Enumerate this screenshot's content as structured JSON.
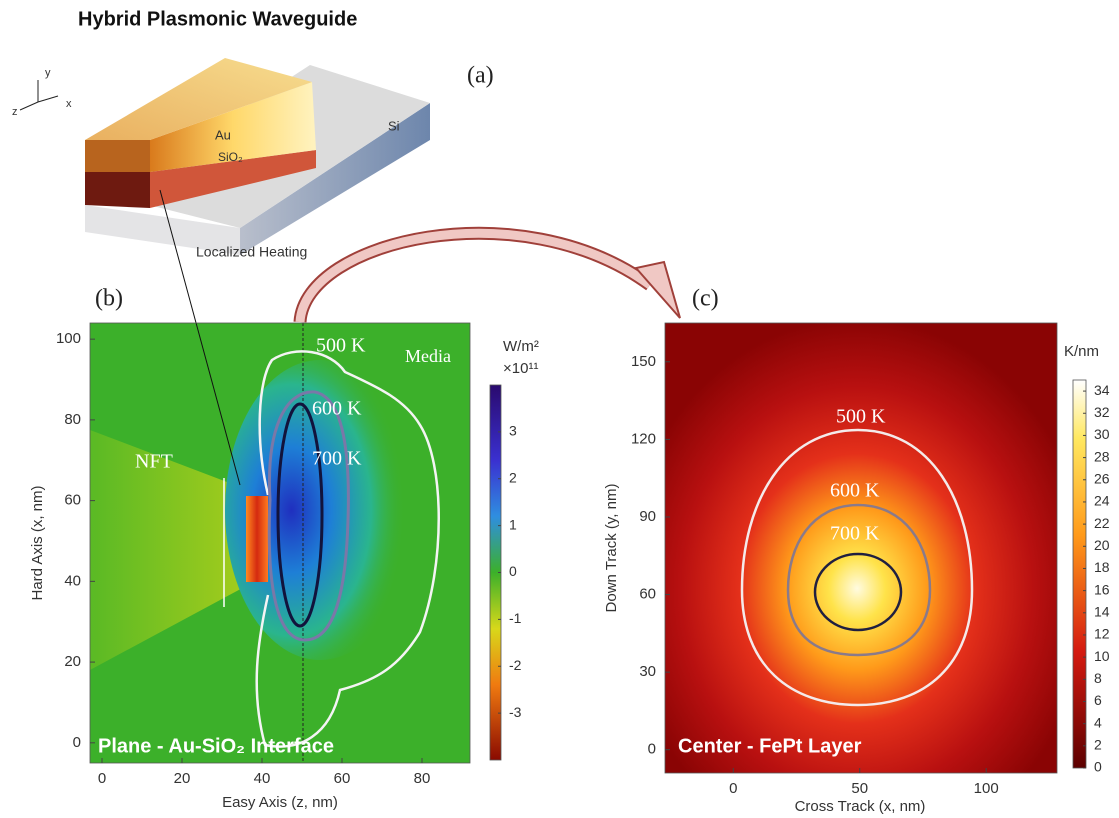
{
  "title": "Hybrid Plasmonic Waveguide",
  "diagram": {
    "label": "(a)",
    "axes": [
      "y",
      "z",
      "x"
    ],
    "layers": [
      "Au",
      "SiO₂",
      "Si"
    ],
    "caption": "Localized Heating"
  },
  "chart_data": [
    {
      "type": "heatmap",
      "panel": "(b)",
      "xlabel": "Easy Axis (z, nm)",
      "ylabel": "Hard Axis (x, nm)",
      "xlim": [
        -3,
        92
      ],
      "xticks": [
        0,
        20,
        40,
        60,
        80
      ],
      "ylim": [
        -5,
        104
      ],
      "yticks": [
        0,
        20,
        40,
        60,
        80,
        100
      ],
      "colorbar": {
        "unit": "W/m²",
        "scale": "×10¹¹",
        "lim": [
          -4,
          4
        ],
        "ticks": [
          -3,
          -2,
          -1,
          0,
          1,
          2,
          3
        ]
      },
      "annotations": [
        "NFT",
        "Media",
        "500 K",
        "600 K",
        "700 K"
      ],
      "caption": "Plane - Au-SiO₂ Interface"
    },
    {
      "type": "heatmap",
      "panel": "(c)",
      "xlabel": "Cross Track (x, nm)",
      "ylabel": "Down Track (y, nm)",
      "xlim": [
        -27,
        128
      ],
      "xticks": [
        0,
        50,
        100
      ],
      "ylim": [
        -9,
        165
      ],
      "yticks": [
        0,
        30,
        60,
        90,
        120,
        150
      ],
      "colorbar": {
        "unit": "K/nm",
        "lim": [
          0,
          35
        ],
        "ticks": [
          0,
          2,
          4,
          6,
          8,
          10,
          12,
          14,
          16,
          18,
          20,
          22,
          24,
          26,
          28,
          30,
          32,
          34
        ]
      },
      "annotations": [
        "500 K",
        "600 K",
        "700 K"
      ],
      "caption": "Center - FePt Layer"
    }
  ]
}
